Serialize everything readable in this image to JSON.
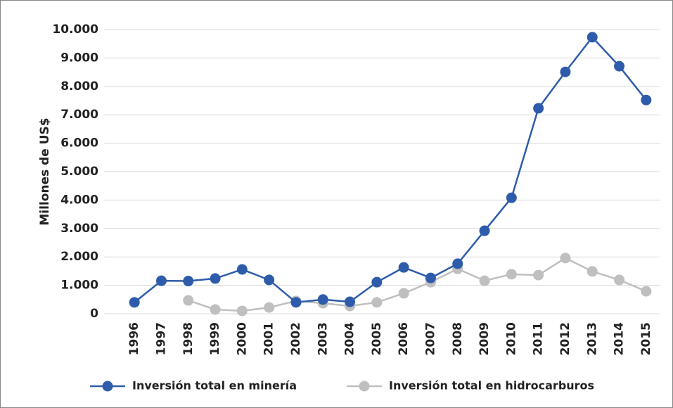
{
  "chart_data": {
    "type": "line",
    "y_label": "Millones de US$",
    "categories": [
      "1996",
      "1997",
      "1998",
      "1999",
      "2000",
      "2001",
      "2002",
      "2003",
      "2004",
      "2005",
      "2006",
      "2007",
      "2008",
      "2009",
      "2010",
      "2011",
      "2012",
      "2013",
      "2014",
      "2015"
    ],
    "series": [
      {
        "name": "Inversión total en minería",
        "color": "#2e5caa",
        "values": [
          400,
          1160,
          1150,
          1240,
          1560,
          1190,
          400,
          500,
          420,
          1110,
          1630,
          1260,
          1760,
          2920,
          4080,
          7230,
          8510,
          9730,
          8710,
          7520
        ]
      },
      {
        "name": "Inversión total en hidrocarburos",
        "color": "#bfbfbf",
        "values": [
          null,
          null,
          470,
          150,
          100,
          220,
          450,
          370,
          270,
          400,
          720,
          1110,
          1580,
          1160,
          1390,
          1360,
          1960,
          1490,
          1190,
          790
        ]
      }
    ],
    "ylim": [
      0,
      10000
    ],
    "yticks": [
      0,
      {
        "value": 1000,
        "label": "1.000"
      },
      {
        "value": 2000,
        "label": "2.000"
      },
      {
        "value": 3000,
        "label": "3.000"
      },
      {
        "value": 4000,
        "label": "4.000"
      },
      {
        "value": 5000,
        "label": "5.000"
      },
      {
        "value": 6000,
        "label": "6.000"
      },
      {
        "value": 7000,
        "label": "7.000"
      },
      {
        "value": 8000,
        "label": "8.000"
      },
      {
        "value": 9000,
        "label": "9.000"
      },
      {
        "value": 10000,
        "label": "10.000"
      }
    ],
    "grid": true,
    "legend": "bottom"
  }
}
